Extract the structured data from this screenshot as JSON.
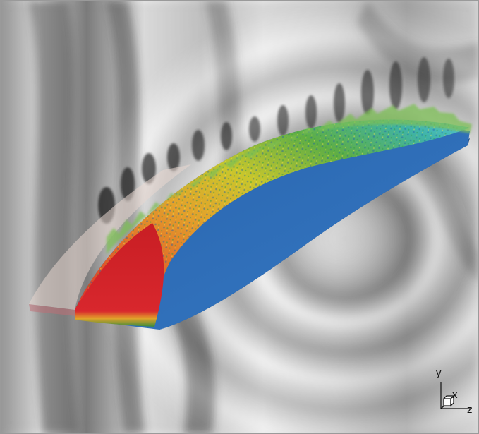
{
  "figure": {
    "axes": {
      "y_label": "y",
      "x_label": "x",
      "z_label": "z"
    },
    "colors": {
      "airfoil_side": "#2f6fb8",
      "leading_edge": "#d8232a",
      "turbulence_warm": "#e98b2a",
      "turbulence_yellow": "#d9c628",
      "turbulence_green": "#3fa34a",
      "turbulence_cyan": "#3db8c9",
      "background_light": "#f2f2f2",
      "background_dark": "#2a2a2a"
    }
  }
}
